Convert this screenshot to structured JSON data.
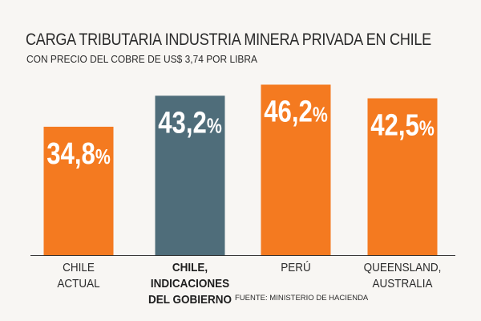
{
  "chart_data": {
    "type": "bar",
    "title": "CARGA TRIBUTARIA INDUSTRIA MINERA PRIVADA EN CHILE",
    "subtitle": "CON PRECIO DEL COBRE DE US$ 3,74 POR LIBRA",
    "categories": [
      [
        "CHILE",
        "ACTUAL"
      ],
      [
        "CHILE, INDICACIONES",
        "DEL GOBIERNO"
      ],
      [
        "PERÚ"
      ],
      [
        "QUEENSLAND,",
        "AUSTRALIA"
      ]
    ],
    "values": [
      34.8,
      43.2,
      46.2,
      42.5
    ],
    "value_labels": [
      "34,8",
      "43,2",
      "46,2",
      "42,5"
    ],
    "value_unit": "%",
    "bar_colors": [
      "#f47a20",
      "#4f6d7a",
      "#f47a20",
      "#f47a20"
    ],
    "highlight_index": 1,
    "ylim": [
      0,
      50
    ],
    "source": "FUENTE: MINISTERIO DE HACIENDA"
  },
  "colors": {
    "accent": "#f47a20",
    "highlight": "#4f6d7a",
    "text": "#2a2a2a",
    "background": "#f8f6f3"
  }
}
